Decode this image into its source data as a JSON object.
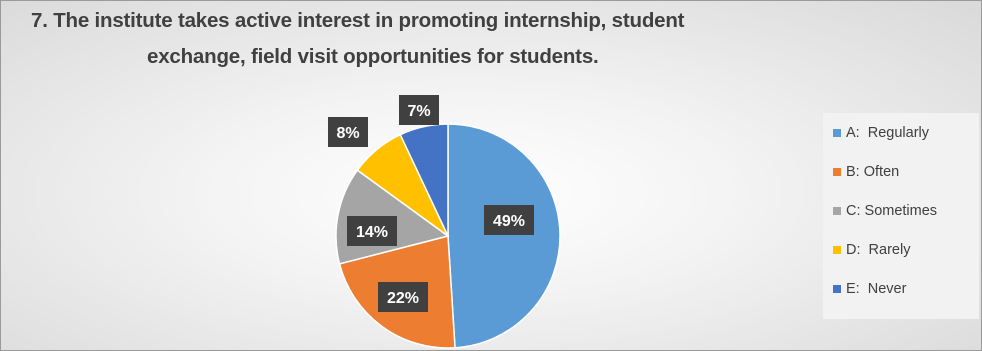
{
  "chart_data": {
    "type": "pie",
    "title_lines": [
      "7. The institute takes active interest in promoting internship, student",
      "exchange, field visit opportunities for students."
    ],
    "categories": [
      "A:  Regularly",
      "B: Often",
      "C: Sometimes",
      "D:  Rarely",
      "E:  Never"
    ],
    "values": [
      49,
      22,
      14,
      8,
      7
    ],
    "value_labels": [
      "49%",
      "22%",
      "14%",
      "8%",
      "7%"
    ],
    "colors": [
      "#5b9bd5",
      "#ed7d31",
      "#a5a5a5",
      "#ffc000",
      "#4472c4"
    ],
    "legend_position": "right",
    "start_angle": "12 o'clock",
    "direction": "clockwise"
  }
}
